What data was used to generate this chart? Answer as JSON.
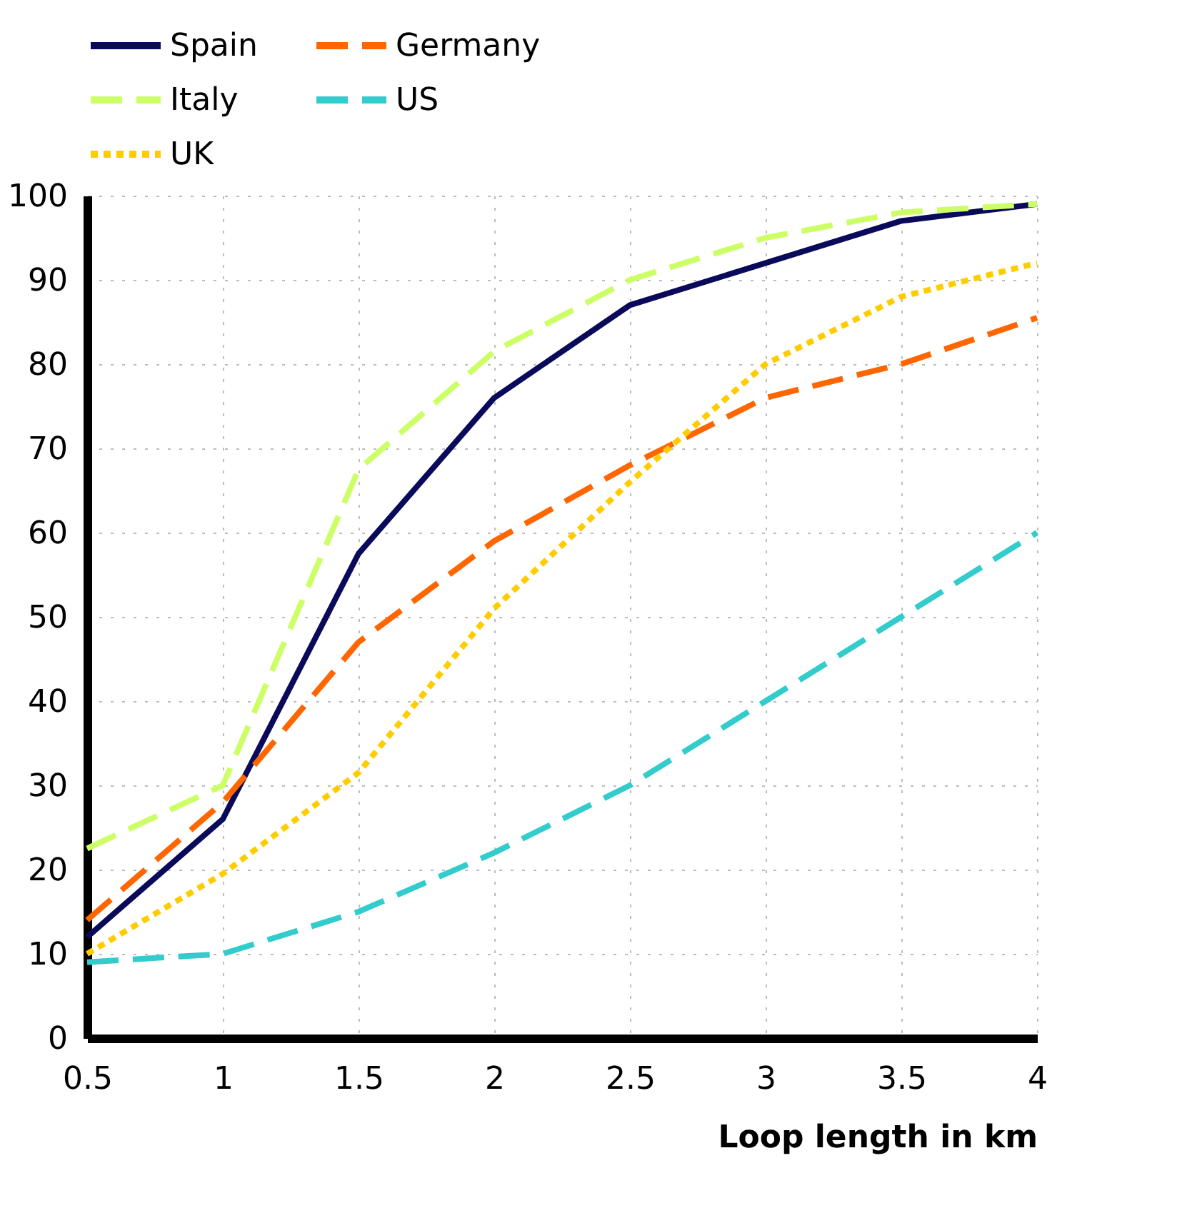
{
  "chart_data": {
    "type": "line",
    "xlabel": "Loop length in km",
    "x": [
      0.5,
      1,
      1.5,
      2,
      2.5,
      3,
      3.5,
      4
    ],
    "xlim": [
      0.5,
      4
    ],
    "xticks": [
      0.5,
      1,
      1.5,
      2,
      2.5,
      3,
      3.5,
      4
    ],
    "ylim": [
      0,
      100
    ],
    "yticks": [
      0,
      10,
      20,
      30,
      40,
      50,
      60,
      70,
      80,
      90,
      100
    ],
    "grid": true,
    "legend": "top",
    "marker": "none",
    "series": [
      {
        "name": "Spain",
        "color": "#0a0a5a",
        "line_style": "solid",
        "values": [
          12,
          26,
          57.5,
          76,
          87,
          92,
          97,
          99
        ]
      },
      {
        "name": "Germany",
        "color": "#ff6600",
        "line_style": "dashed",
        "values": [
          14,
          28,
          47,
          59,
          68,
          76,
          80,
          85.5
        ]
      },
      {
        "name": "Italy",
        "color": "#ccff66",
        "line_style": "dashed",
        "values": [
          22.5,
          30,
          67.5,
          81.5,
          90,
          95,
          98,
          99
        ]
      },
      {
        "name": "US",
        "color": "#33cccc",
        "line_style": "dashed",
        "values": [
          9,
          10,
          15,
          22,
          30,
          40,
          50,
          60
        ]
      },
      {
        "name": "UK",
        "color": "#ffcc00",
        "line_style": "dotted",
        "values": [
          10,
          19.5,
          31.5,
          51,
          66,
          80,
          88,
          92
        ]
      }
    ]
  }
}
